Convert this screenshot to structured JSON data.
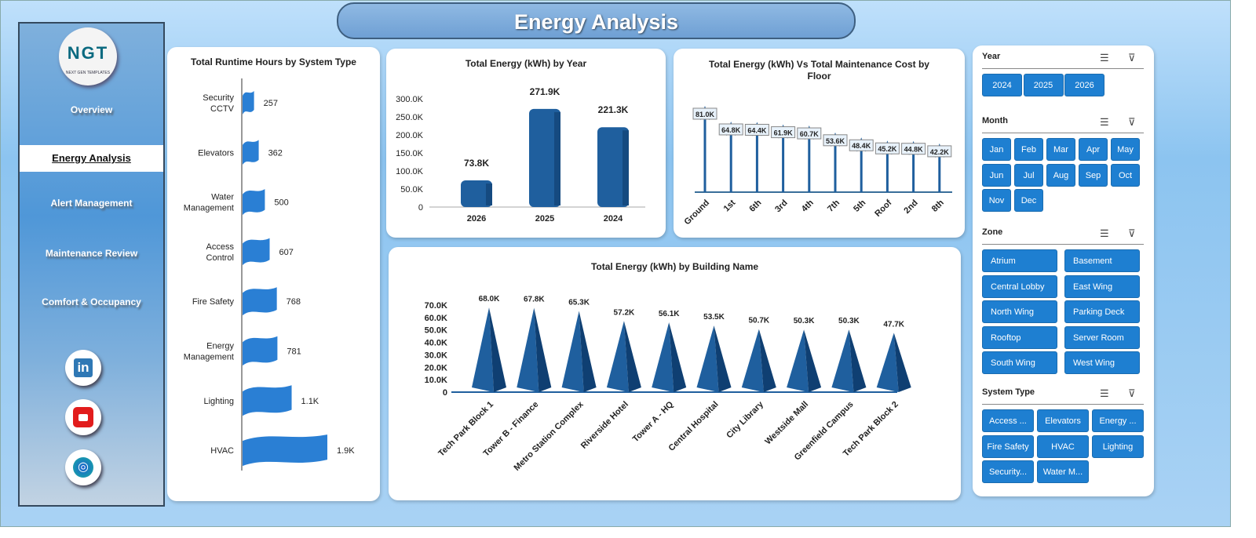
{
  "header": {
    "title": "Energy Analysis"
  },
  "sidebar": {
    "logo_text": "NGT",
    "logo_sub": "NEXT GEN TEMPLATES",
    "items": [
      {
        "label": "Overview"
      },
      {
        "label": "Energy Analysis",
        "active": true
      },
      {
        "label": "Alert Management"
      },
      {
        "label": "Maintenance Review"
      },
      {
        "label": "Comfort & Occupancy"
      }
    ],
    "social": [
      "linkedin-icon",
      "youtube-icon",
      "globe-icon"
    ]
  },
  "colors": {
    "accent": "#1e7fd1",
    "chart": "#1f5f9e",
    "bar": "#2a7fd4"
  },
  "chart_data": [
    {
      "type": "bar",
      "orientation": "horizontal",
      "title": "Total Runtime Hours by System Type",
      "categories": [
        "Security CCTV",
        "Elevators",
        "Water Management",
        "Access Control",
        "Fire Safety",
        "Energy Management",
        "Lighting",
        "HVAC"
      ],
      "values": [
        257,
        362,
        500,
        607,
        768,
        781,
        1100,
        1900
      ],
      "labels": [
        "257",
        "362",
        "500",
        "607",
        "768",
        "781",
        "1.1K",
        "1.9K"
      ]
    },
    {
      "type": "bar",
      "title": "Total Energy (kWh) by Year",
      "categories": [
        "2026",
        "2025",
        "2024"
      ],
      "values": [
        73800,
        271900,
        221300
      ],
      "labels": [
        "73.8K",
        "271.9K",
        "221.3K"
      ],
      "ylim": [
        0,
        300000
      ],
      "yticks": [
        "0",
        "50.0K",
        "100.0K",
        "150.0K",
        "200.0K",
        "250.0K",
        "300.0K"
      ]
    },
    {
      "type": "line",
      "style": "lollipop",
      "title": "Total Energy (kWh) Vs Total Maintenance Cost by Floor",
      "categories": [
        "Ground",
        "1st",
        "6th",
        "3rd",
        "4th",
        "7th",
        "5th",
        "Roof",
        "2nd",
        "8th"
      ],
      "values": [
        81000,
        64800,
        64400,
        61900,
        60700,
        53600,
        48400,
        45200,
        44800,
        42200
      ],
      "labels": [
        "81.0K",
        "64.8K",
        "64.4K",
        "61.9K",
        "60.7K",
        "53.6K",
        "48.4K",
        "45.2K",
        "44.8K",
        "42.2K"
      ]
    },
    {
      "type": "bar",
      "style": "cone",
      "title": "Total Energy (kWh) by Building Name",
      "categories": [
        "Tech Park Block 1",
        "Tower B - Finance",
        "Metro Station Complex",
        "Riverside Hotel",
        "Tower A - HQ",
        "Central Hospital",
        "City Library",
        "Westside Mall",
        "Greenfield Campus",
        "Tech Park Block 2"
      ],
      "values": [
        68000,
        67800,
        65300,
        57200,
        56100,
        53500,
        50700,
        50300,
        50300,
        47700
      ],
      "labels": [
        "68.0K",
        "67.8K",
        "65.3K",
        "57.2K",
        "56.1K",
        "53.5K",
        "50.7K",
        "50.3K",
        "50.3K",
        "47.7K"
      ],
      "ylim": [
        0,
        70000
      ],
      "yticks": [
        "0",
        "10.0K",
        "20.0K",
        "30.0K",
        "40.0K",
        "50.0K",
        "60.0K",
        "70.0K"
      ]
    }
  ],
  "slicers": [
    {
      "title": "Year",
      "items": [
        "2024",
        "2025",
        "2026"
      ]
    },
    {
      "title": "Month",
      "items": [
        "Jan",
        "Feb",
        "Mar",
        "Apr",
        "May",
        "Jun",
        "Jul",
        "Aug",
        "Sep",
        "Oct",
        "Nov",
        "Dec"
      ]
    },
    {
      "title": "Zone",
      "items": [
        "Atrium",
        "Basement",
        "Central Lobby",
        "East Wing",
        "North Wing",
        "Parking Deck",
        "Rooftop",
        "Server Room",
        "South Wing",
        "West Wing"
      ]
    },
    {
      "title": "System Type",
      "items": [
        "Access ...",
        "Elevators",
        "Energy ...",
        "Fire Safety",
        "HVAC",
        "Lighting",
        "Security...",
        "Water M..."
      ]
    }
  ]
}
